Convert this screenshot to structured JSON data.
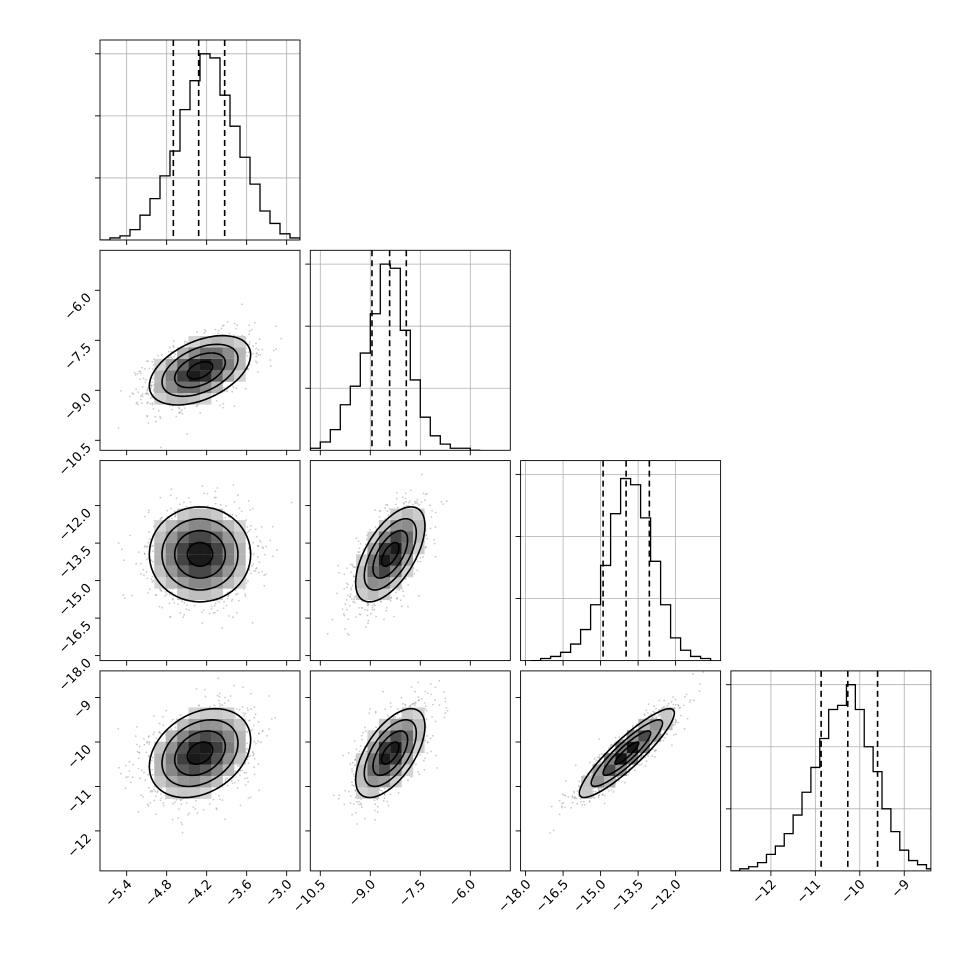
{
  "chart_data": {
    "type": "corner",
    "parameters": [
      {
        "range": [
          -5.8,
          -2.8
        ],
        "mean": -4.3,
        "sd": 0.38,
        "ticks": [
          -5.4,
          -4.8,
          -4.2,
          -3.6,
          -3.0
        ],
        "tick_labels": [
          "−5.4",
          "−4.8",
          "−4.2",
          "−3.6",
          "−3.0"
        ],
        "quantiles": [
          -4.7,
          -4.32,
          -3.93
        ],
        "hist_bins": [
          [
            -5.8,
            -5.65,
            0.0
          ],
          [
            -5.65,
            -5.5,
            0.01
          ],
          [
            -5.5,
            -5.35,
            0.02
          ],
          [
            -5.35,
            -5.2,
            0.05
          ],
          [
            -5.2,
            -5.05,
            0.12
          ],
          [
            -5.05,
            -4.9,
            0.2
          ],
          [
            -4.9,
            -4.75,
            0.31
          ],
          [
            -4.75,
            -4.6,
            0.43
          ],
          [
            -4.6,
            -4.45,
            0.63
          ],
          [
            -4.45,
            -4.3,
            0.77
          ],
          [
            -4.3,
            -4.15,
            0.9
          ],
          [
            -4.15,
            -4.0,
            0.88
          ],
          [
            -4.0,
            -3.85,
            0.7
          ],
          [
            -3.85,
            -3.7,
            0.55
          ],
          [
            -3.7,
            -3.55,
            0.4
          ],
          [
            -3.55,
            -3.4,
            0.27
          ],
          [
            -3.4,
            -3.25,
            0.14
          ],
          [
            -3.25,
            -3.1,
            0.08
          ],
          [
            -3.1,
            -2.95,
            0.03
          ],
          [
            -2.95,
            -2.8,
            0.01
          ]
        ]
      },
      {
        "range": [
          -10.8,
          -4.8
        ],
        "mean": -8.4,
        "sd": 0.52,
        "ticks": [
          -10.5,
          -9.0,
          -7.5,
          -6.0
        ],
        "tick_labels": [
          "−10.5",
          "−9.0",
          "−7.5",
          "−6.0"
        ],
        "quantiles": [
          -8.95,
          -8.42,
          -7.92
        ],
        "hist_bins": [
          [
            -10.8,
            -10.5,
            0.01
          ],
          [
            -10.5,
            -10.2,
            0.04
          ],
          [
            -10.2,
            -9.9,
            0.1
          ],
          [
            -9.9,
            -9.6,
            0.22
          ],
          [
            -9.6,
            -9.3,
            0.31
          ],
          [
            -9.3,
            -9.0,
            0.47
          ],
          [
            -9.0,
            -8.7,
            0.66
          ],
          [
            -8.7,
            -8.4,
            0.9
          ],
          [
            -8.4,
            -8.1,
            0.88
          ],
          [
            -8.1,
            -7.8,
            0.58
          ],
          [
            -7.8,
            -7.5,
            0.34
          ],
          [
            -7.5,
            -7.2,
            0.16
          ],
          [
            -7.2,
            -6.9,
            0.07
          ],
          [
            -6.9,
            -6.6,
            0.03
          ],
          [
            -6.6,
            -6.3,
            0.01
          ],
          [
            -6.3,
            -6.0,
            0.01
          ],
          [
            -6.0,
            -5.7,
            0.0
          ]
        ]
      },
      {
        "range": [
          -18.2,
          -10.2
        ],
        "mean": -13.95,
        "sd": 0.95,
        "ticks": [
          -18.0,
          -16.5,
          -15.0,
          -13.5,
          -12.0
        ],
        "tick_labels": [
          "−18.0",
          "−16.5",
          "−15.0",
          "−13.5",
          "−12.0"
        ],
        "quantiles": [
          -14.9,
          -13.98,
          -13.05
        ],
        "hist_bins": [
          [
            -17.8,
            -17.4,
            0.0
          ],
          [
            -17.4,
            -17.0,
            0.01
          ],
          [
            -17.0,
            -16.6,
            0.02
          ],
          [
            -16.6,
            -16.2,
            0.04
          ],
          [
            -16.2,
            -15.8,
            0.08
          ],
          [
            -15.8,
            -15.4,
            0.15
          ],
          [
            -15.4,
            -15.0,
            0.27
          ],
          [
            -15.0,
            -14.6,
            0.46
          ],
          [
            -14.6,
            -14.2,
            0.71
          ],
          [
            -14.2,
            -13.8,
            0.88
          ],
          [
            -13.8,
            -13.4,
            0.85
          ],
          [
            -13.4,
            -13.0,
            0.69
          ],
          [
            -13.0,
            -12.6,
            0.48
          ],
          [
            -12.6,
            -12.2,
            0.27
          ],
          [
            -12.2,
            -11.8,
            0.11
          ],
          [
            -11.8,
            -11.4,
            0.05
          ],
          [
            -11.4,
            -11.0,
            0.02
          ],
          [
            -11.0,
            -10.6,
            0.01
          ]
        ]
      },
      {
        "range": [
          -12.9,
          -8.4
        ],
        "mean": -10.25,
        "sd": 0.5,
        "ticks": [
          -12,
          -11,
          -10,
          -9
        ],
        "tick_labels": [
          "−12",
          "−11",
          "−10",
          "−9"
        ],
        "quantiles": [
          -10.87,
          -10.27,
          -9.6
        ],
        "hist_bins": [
          [
            -12.9,
            -12.7,
            0.0
          ],
          [
            -12.7,
            -12.5,
            0.01
          ],
          [
            -12.5,
            -12.3,
            0.02
          ],
          [
            -12.3,
            -12.1,
            0.04
          ],
          [
            -12.1,
            -11.9,
            0.08
          ],
          [
            -11.9,
            -11.7,
            0.12
          ],
          [
            -11.7,
            -11.5,
            0.18
          ],
          [
            -11.5,
            -11.3,
            0.27
          ],
          [
            -11.3,
            -11.1,
            0.38
          ],
          [
            -11.1,
            -10.9,
            0.5
          ],
          [
            -10.9,
            -10.7,
            0.64
          ],
          [
            -10.7,
            -10.5,
            0.78
          ],
          [
            -10.5,
            -10.3,
            0.8
          ],
          [
            -10.3,
            -10.1,
            0.9
          ],
          [
            -10.1,
            -9.9,
            0.78
          ],
          [
            -9.9,
            -9.7,
            0.6
          ],
          [
            -9.7,
            -9.5,
            0.48
          ],
          [
            -9.5,
            -9.3,
            0.3
          ],
          [
            -9.3,
            -9.1,
            0.19
          ],
          [
            -9.1,
            -8.9,
            0.1
          ],
          [
            -8.9,
            -8.7,
            0.05
          ],
          [
            -8.7,
            -8.5,
            0.03
          ],
          [
            -8.5,
            -8.3,
            0.01
          ]
        ]
      }
    ],
    "correlations": {
      "1-0": 0.45,
      "2-0": 0.0,
      "2-1": 0.6,
      "3-0": 0.3,
      "3-1": 0.6,
      "3-2": 0.9
    },
    "contour_levels_sigma": [
      0.5,
      1.0,
      1.5,
      2.0
    ],
    "grid": true,
    "xlabels": [
      "",
      "",
      "",
      ""
    ],
    "ylabels": [
      "",
      "",
      "",
      ""
    ]
  }
}
